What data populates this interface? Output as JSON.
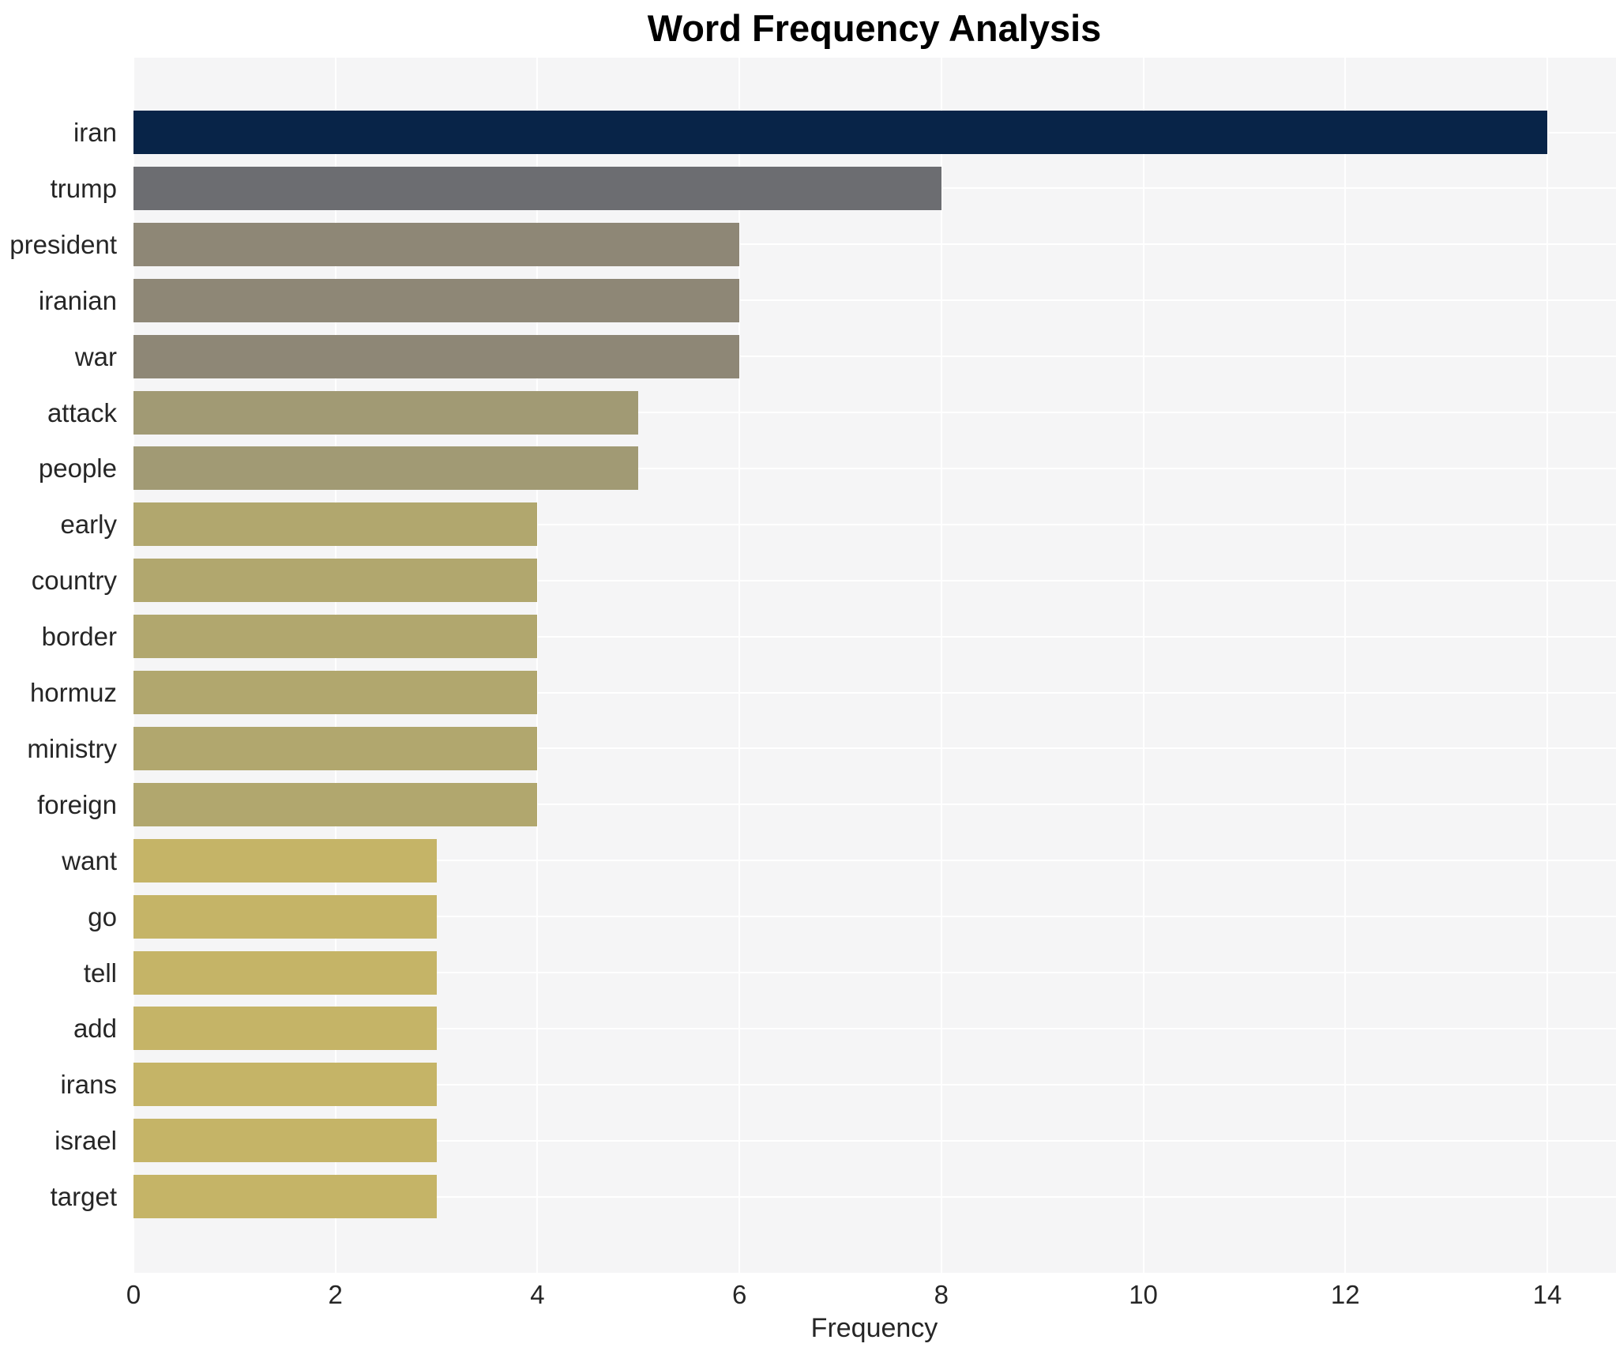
{
  "chart_data": {
    "type": "bar",
    "orientation": "horizontal",
    "title": "Word Frequency Analysis",
    "xlabel": "Frequency",
    "ylabel": "",
    "categories": [
      "iran",
      "trump",
      "president",
      "iranian",
      "war",
      "attack",
      "people",
      "early",
      "country",
      "border",
      "hormuz",
      "ministry",
      "foreign",
      "want",
      "go",
      "tell",
      "add",
      "irans",
      "israel",
      "target"
    ],
    "values": [
      14,
      8,
      6,
      6,
      6,
      5,
      5,
      4,
      4,
      4,
      4,
      4,
      4,
      3,
      3,
      3,
      3,
      3,
      3,
      3
    ],
    "bar_colors": [
      "#082448",
      "#6c6d71",
      "#8e8776",
      "#8e8776",
      "#8e8776",
      "#a19a74",
      "#a19a74",
      "#b1a76e",
      "#b1a76e",
      "#b1a76e",
      "#b1a76e",
      "#b1a76e",
      "#b1a76e",
      "#c5b467",
      "#c5b467",
      "#c5b467",
      "#c5b467",
      "#c5b467",
      "#c5b467",
      "#c5b467"
    ],
    "x_ticks": [
      0,
      2,
      4,
      6,
      8,
      10,
      12,
      14
    ],
    "xlim": [
      0,
      14.68
    ],
    "grid": true,
    "legend": false,
    "plot_bg_color": "#f5f5f6",
    "grid_color": "#ffffff"
  }
}
